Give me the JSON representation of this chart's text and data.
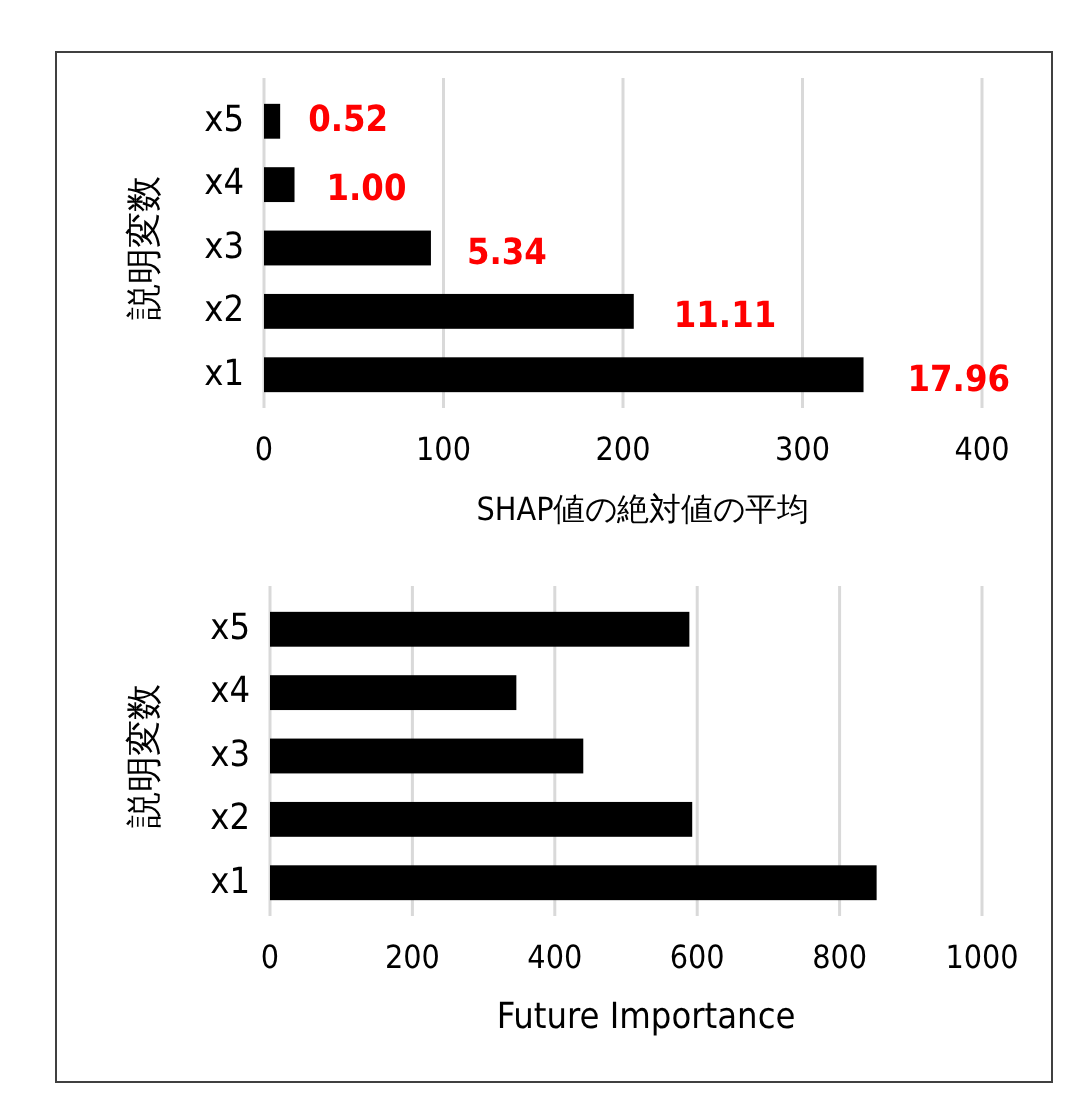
{
  "chart_data": [
    {
      "type": "bar",
      "orientation": "horizontal",
      "categories": [
        "x5",
        "x4",
        "x3",
        "x2",
        "x1"
      ],
      "values": [
        9,
        17,
        93,
        206,
        334
      ],
      "color": "#000000",
      "annotations": [
        {
          "text": "0.52",
          "x": 9,
          "y": "x5"
        },
        {
          "text": "1.00",
          "x": 17,
          "y": "x4"
        },
        {
          "text": "5.34",
          "x": 93,
          "y": "x3"
        },
        {
          "text": "11.11",
          "x": 206,
          "y": "x2"
        },
        {
          "text": "17.96",
          "x": 334,
          "y": "x1"
        }
      ],
      "xlim": [
        0,
        400
      ],
      "xticks": [
        0,
        100,
        200,
        300,
        400
      ],
      "xlabel": "SHAP値の絶対値の平均",
      "ylabel": "説明変数",
      "grid": "x"
    },
    {
      "type": "bar",
      "orientation": "horizontal",
      "categories": [
        "x5",
        "x4",
        "x3",
        "x2",
        "x1"
      ],
      "values": [
        589,
        346,
        440,
        593,
        852
      ],
      "color": "#000000",
      "xlim": [
        0,
        1000
      ],
      "xticks": [
        0,
        200,
        400,
        600,
        800,
        1000
      ],
      "xlabel": "Future Importance",
      "ylabel": "説明変数",
      "grid": "x"
    }
  ]
}
